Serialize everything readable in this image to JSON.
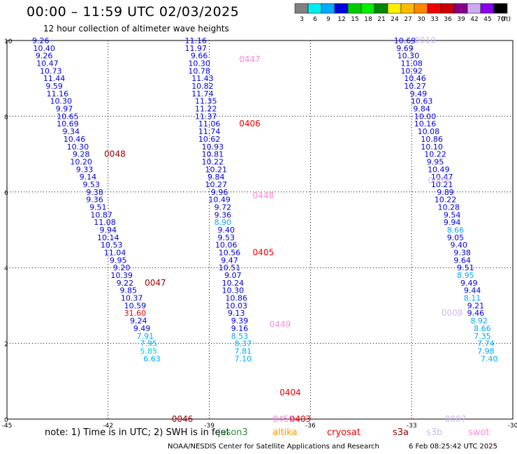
{
  "title": "00:00 – 11:59 UTC 02/03/2025",
  "subtitle": "12 hour collection of altimeter wave heights",
  "note": "note:  1) Time is in UTC; 2) SWH is in feet",
  "credit": "NOAA/NESDIS Center for Satellite Applications and Research",
  "timestamp": "6 Feb 08:25:42 UTC 2025",
  "legend_labels": [
    "jason3",
    "altika",
    "cryosat",
    "s3a",
    "s3b",
    "swot"
  ],
  "legend_colors": {
    "jason3": "#2e8b3e",
    "altika": "#ff9900",
    "cryosat": "#ee0000",
    "s3a": "#990000",
    "s3b": "#ccbbee",
    "swot": "#ff88dd"
  },
  "chart_data": {
    "type": "scatter",
    "xlim": [
      -45,
      -30
    ],
    "ylim": [
      0,
      10
    ],
    "x_ticks": [
      "-45",
      "-42",
      "-39",
      "-36",
      "-33",
      "-30"
    ],
    "y_ticks": [
      "0",
      "2",
      "4",
      "6",
      "8",
      "10"
    ],
    "grid": true,
    "colorbar": {
      "ticks": [
        "3",
        "6",
        "9",
        "12",
        "15",
        "18",
        "21",
        "24",
        "27",
        "30",
        "33",
        "36",
        "39",
        "42",
        "45",
        "70"
      ],
      "unit": "(ft)",
      "colors": [
        "#808080",
        "#00eeee",
        "#00aaff",
        "#0000dd",
        "#00cc00",
        "#00ee00",
        "#008800",
        "#ffee00",
        "#ffbb00",
        "#ff8800",
        "#ee0000",
        "#cc0000",
        "#880088",
        "#ccaaee",
        "#8800ee",
        "#000000"
      ]
    },
    "time_labels": [
      {
        "text": "0048",
        "x": -41.8,
        "y": 7.0,
        "color": "#990000"
      },
      {
        "text": "0047",
        "x": -40.6,
        "y": 3.6,
        "color": "#990000"
      },
      {
        "text": "0046",
        "x": -39.8,
        "y": 0.0,
        "color": "#990000"
      },
      {
        "text": "0447",
        "x": -37.8,
        "y": 9.5,
        "color": "#ff88dd"
      },
      {
        "text": "0406",
        "x": -37.8,
        "y": 7.8,
        "color": "#ee0000"
      },
      {
        "text": "0448",
        "x": -37.4,
        "y": 5.9,
        "color": "#ff88dd"
      },
      {
        "text": "0405",
        "x": -37.4,
        "y": 4.4,
        "color": "#ee0000"
      },
      {
        "text": "0449",
        "x": -36.9,
        "y": 2.5,
        "color": "#ff88dd"
      },
      {
        "text": "0404",
        "x": -36.6,
        "y": 0.7,
        "color": "#ee0000"
      },
      {
        "text": "0403",
        "x": -36.3,
        "y": 0.0,
        "color": "#ee0000"
      },
      {
        "text": "0450",
        "x": -36.8,
        "y": 0.0,
        "color": "#ff88dd"
      },
      {
        "text": "0010",
        "x": -32.6,
        "y": 10.0,
        "color": "#ccbbee"
      },
      {
        "text": "0009",
        "x": -32.2,
        "y": 6.3,
        "color": "#ccbbee"
      },
      {
        "text": "0008",
        "x": -31.8,
        "y": 2.8,
        "color": "#ccbbee"
      },
      {
        "text": "0007",
        "x": -31.7,
        "y": 0.0,
        "color": "#ccbbee"
      }
    ],
    "series": [
      {
        "points": [
          {
            "x": -44.0,
            "y": 10.0,
            "v": "9.26"
          },
          {
            "x": -43.9,
            "y": 9.8,
            "v": "10.40"
          },
          {
            "x": -43.9,
            "y": 9.6,
            "v": "9.26"
          },
          {
            "x": -43.8,
            "y": 9.4,
            "v": "10.47"
          },
          {
            "x": -43.7,
            "y": 9.2,
            "v": "10.73"
          },
          {
            "x": -43.6,
            "y": 9.0,
            "v": "11.44"
          },
          {
            "x": -43.6,
            "y": 8.8,
            "v": "9.59"
          },
          {
            "x": -43.5,
            "y": 8.6,
            "v": "11.16"
          },
          {
            "x": -43.4,
            "y": 8.4,
            "v": "10.30"
          },
          {
            "x": -43.3,
            "y": 8.2,
            "v": "9.97"
          },
          {
            "x": -43.2,
            "y": 8.0,
            "v": "10.65"
          },
          {
            "x": -43.2,
            "y": 7.8,
            "v": "10.69"
          },
          {
            "x": -43.1,
            "y": 7.6,
            "v": "9.34"
          },
          {
            "x": -43.0,
            "y": 7.4,
            "v": "10.46"
          },
          {
            "x": -42.9,
            "y": 7.2,
            "v": "10.30"
          },
          {
            "x": -42.8,
            "y": 7.0,
            "v": "9.28"
          },
          {
            "x": -42.8,
            "y": 6.8,
            "v": "10.20"
          },
          {
            "x": -42.7,
            "y": 6.6,
            "v": "9.33"
          },
          {
            "x": -42.6,
            "y": 6.4,
            "v": "9.14"
          },
          {
            "x": -42.5,
            "y": 6.2,
            "v": "9.53"
          },
          {
            "x": -42.4,
            "y": 6.0,
            "v": "9.38"
          },
          {
            "x": -42.4,
            "y": 5.8,
            "v": "9.36"
          },
          {
            "x": -42.3,
            "y": 5.6,
            "v": "9.51"
          },
          {
            "x": -42.2,
            "y": 5.4,
            "v": "10.87"
          },
          {
            "x": -42.1,
            "y": 5.2,
            "v": "11.08"
          },
          {
            "x": -42.0,
            "y": 5.0,
            "v": "9.94"
          },
          {
            "x": -42.0,
            "y": 4.8,
            "v": "10.14"
          },
          {
            "x": -41.9,
            "y": 4.6,
            "v": "10.53"
          },
          {
            "x": -41.8,
            "y": 4.4,
            "v": "11.04"
          },
          {
            "x": -41.7,
            "y": 4.2,
            "v": "9.95"
          },
          {
            "x": -41.6,
            "y": 4.0,
            "v": "9.20"
          },
          {
            "x": -41.6,
            "y": 3.8,
            "v": "10.39"
          },
          {
            "x": -41.5,
            "y": 3.6,
            "v": "9.22"
          },
          {
            "x": -41.4,
            "y": 3.4,
            "v": "9.85"
          },
          {
            "x": -41.3,
            "y": 3.2,
            "v": "10.37"
          },
          {
            "x": -41.2,
            "y": 3.0,
            "v": "10.59"
          },
          {
            "x": -41.2,
            "y": 2.8,
            "v": "31.60"
          },
          {
            "x": -41.1,
            "y": 2.6,
            "v": "9.24"
          },
          {
            "x": -41.0,
            "y": 2.4,
            "v": "9.49"
          },
          {
            "x": -40.9,
            "y": 2.2,
            "v": "7.91"
          },
          {
            "x": -40.8,
            "y": 2.0,
            "v": "7.95"
          },
          {
            "x": -40.8,
            "y": 1.8,
            "v": "5.85"
          },
          {
            "x": -40.7,
            "y": 1.6,
            "v": "6.63"
          }
        ]
      },
      {
        "points": [
          {
            "x": -39.4,
            "y": 10.0,
            "v": "11.16"
          },
          {
            "x": -39.4,
            "y": 9.8,
            "v": "11.97"
          },
          {
            "x": -39.3,
            "y": 9.6,
            "v": "9.66"
          },
          {
            "x": -39.3,
            "y": 9.4,
            "v": "10.30"
          },
          {
            "x": -39.3,
            "y": 9.2,
            "v": "10.78"
          },
          {
            "x": -39.2,
            "y": 9.0,
            "v": "11.43"
          },
          {
            "x": -39.2,
            "y": 8.8,
            "v": "10.82"
          },
          {
            "x": -39.2,
            "y": 8.6,
            "v": "11.74"
          },
          {
            "x": -39.1,
            "y": 8.4,
            "v": "11.35"
          },
          {
            "x": -39.1,
            "y": 8.2,
            "v": "11.22"
          },
          {
            "x": -39.1,
            "y": 8.0,
            "v": "11.37"
          },
          {
            "x": -39.0,
            "y": 7.8,
            "v": "11.06"
          },
          {
            "x": -39.0,
            "y": 7.6,
            "v": "11.74"
          },
          {
            "x": -39.0,
            "y": 7.4,
            "v": "10.62"
          },
          {
            "x": -38.9,
            "y": 7.2,
            "v": "10.93"
          },
          {
            "x": -38.9,
            "y": 7.0,
            "v": "10.81"
          },
          {
            "x": -38.9,
            "y": 6.8,
            "v": "10.22"
          },
          {
            "x": -38.8,
            "y": 6.6,
            "v": "10.21"
          },
          {
            "x": -38.8,
            "y": 6.4,
            "v": "9.84"
          },
          {
            "x": -38.8,
            "y": 6.2,
            "v": "10.27"
          },
          {
            "x": -38.7,
            "y": 6.0,
            "v": "9.96"
          },
          {
            "x": -38.7,
            "y": 5.8,
            "v": "10.49"
          },
          {
            "x": -38.6,
            "y": 5.6,
            "v": "9.72"
          },
          {
            "x": -38.6,
            "y": 5.4,
            "v": "9.36"
          },
          {
            "x": -38.6,
            "y": 5.2,
            "v": "8.90"
          },
          {
            "x": -38.5,
            "y": 5.0,
            "v": "9.40"
          },
          {
            "x": -38.5,
            "y": 4.8,
            "v": "9.53"
          },
          {
            "x": -38.5,
            "y": 4.6,
            "v": "10.06"
          },
          {
            "x": -38.4,
            "y": 4.4,
            "v": "10.56"
          },
          {
            "x": -38.4,
            "y": 4.2,
            "v": "9.47"
          },
          {
            "x": -38.4,
            "y": 4.0,
            "v": "10.51"
          },
          {
            "x": -38.3,
            "y": 3.8,
            "v": "9.07"
          },
          {
            "x": -38.3,
            "y": 3.6,
            "v": "10.24"
          },
          {
            "x": -38.3,
            "y": 3.4,
            "v": "10.30"
          },
          {
            "x": -38.2,
            "y": 3.2,
            "v": "10.86"
          },
          {
            "x": -38.2,
            "y": 3.0,
            "v": "10.03"
          },
          {
            "x": -38.2,
            "y": 2.8,
            "v": "9.13"
          },
          {
            "x": -38.1,
            "y": 2.6,
            "v": "9.39"
          },
          {
            "x": -38.1,
            "y": 2.4,
            "v": "9.16"
          },
          {
            "x": -38.1,
            "y": 2.2,
            "v": "8.53"
          },
          {
            "x": -38.0,
            "y": 2.0,
            "v": "8.37"
          },
          {
            "x": -38.0,
            "y": 1.8,
            "v": "7.81"
          },
          {
            "x": -38.0,
            "y": 1.6,
            "v": "7.10"
          }
        ]
      },
      {
        "points": [
          {
            "x": -33.2,
            "y": 10.0,
            "v": "10.69"
          },
          {
            "x": -33.2,
            "y": 9.8,
            "v": "9.69"
          },
          {
            "x": -33.1,
            "y": 9.6,
            "v": "10.30"
          },
          {
            "x": -33.0,
            "y": 9.4,
            "v": "11.08"
          },
          {
            "x": -33.0,
            "y": 9.2,
            "v": "10.92"
          },
          {
            "x": -32.9,
            "y": 9.0,
            "v": "10.46"
          },
          {
            "x": -32.9,
            "y": 8.8,
            "v": "10.27"
          },
          {
            "x": -32.8,
            "y": 8.6,
            "v": "9.49"
          },
          {
            "x": -32.7,
            "y": 8.4,
            "v": "10.63"
          },
          {
            "x": -32.7,
            "y": 8.2,
            "v": "9.84"
          },
          {
            "x": -32.6,
            "y": 8.0,
            "v": "10.00"
          },
          {
            "x": -32.6,
            "y": 7.8,
            "v": "10.16"
          },
          {
            "x": -32.5,
            "y": 7.6,
            "v": "10.08"
          },
          {
            "x": -32.4,
            "y": 7.4,
            "v": "10.86"
          },
          {
            "x": -32.4,
            "y": 7.2,
            "v": "10.10"
          },
          {
            "x": -32.3,
            "y": 7.0,
            "v": "10.22"
          },
          {
            "x": -32.3,
            "y": 6.8,
            "v": "9.95"
          },
          {
            "x": -32.2,
            "y": 6.6,
            "v": "10.49"
          },
          {
            "x": -32.1,
            "y": 6.4,
            "v": "10.47"
          },
          {
            "x": -32.1,
            "y": 6.2,
            "v": "10.21"
          },
          {
            "x": -32.0,
            "y": 6.0,
            "v": "9.89"
          },
          {
            "x": -32.0,
            "y": 5.8,
            "v": "10.22"
          },
          {
            "x": -31.9,
            "y": 5.6,
            "v": "10.28"
          },
          {
            "x": -31.8,
            "y": 5.4,
            "v": "9.54"
          },
          {
            "x": -31.8,
            "y": 5.2,
            "v": "9.94"
          },
          {
            "x": -31.7,
            "y": 5.0,
            "v": "8.66"
          },
          {
            "x": -31.7,
            "y": 4.8,
            "v": "9.05"
          },
          {
            "x": -31.6,
            "y": 4.6,
            "v": "9.40"
          },
          {
            "x": -31.5,
            "y": 4.4,
            "v": "9.38"
          },
          {
            "x": -31.5,
            "y": 4.2,
            "v": "9.64"
          },
          {
            "x": -31.4,
            "y": 4.0,
            "v": "9.51"
          },
          {
            "x": -31.4,
            "y": 3.8,
            "v": "8.95"
          },
          {
            "x": -31.3,
            "y": 3.6,
            "v": "9.49"
          },
          {
            "x": -31.2,
            "y": 3.4,
            "v": "9.44"
          },
          {
            "x": -31.2,
            "y": 3.2,
            "v": "8.11"
          },
          {
            "x": -31.1,
            "y": 3.0,
            "v": "9.21"
          },
          {
            "x": -31.1,
            "y": 2.8,
            "v": "9.46"
          },
          {
            "x": -31.0,
            "y": 2.6,
            "v": "8.92"
          },
          {
            "x": -30.9,
            "y": 2.4,
            "v": "8.66"
          },
          {
            "x": -30.9,
            "y": 2.2,
            "v": "7.35"
          },
          {
            "x": -30.8,
            "y": 2.0,
            "v": "7.74"
          },
          {
            "x": -30.8,
            "y": 1.8,
            "v": "7.98"
          },
          {
            "x": -30.7,
            "y": 1.6,
            "v": "7.40"
          }
        ]
      }
    ]
  }
}
